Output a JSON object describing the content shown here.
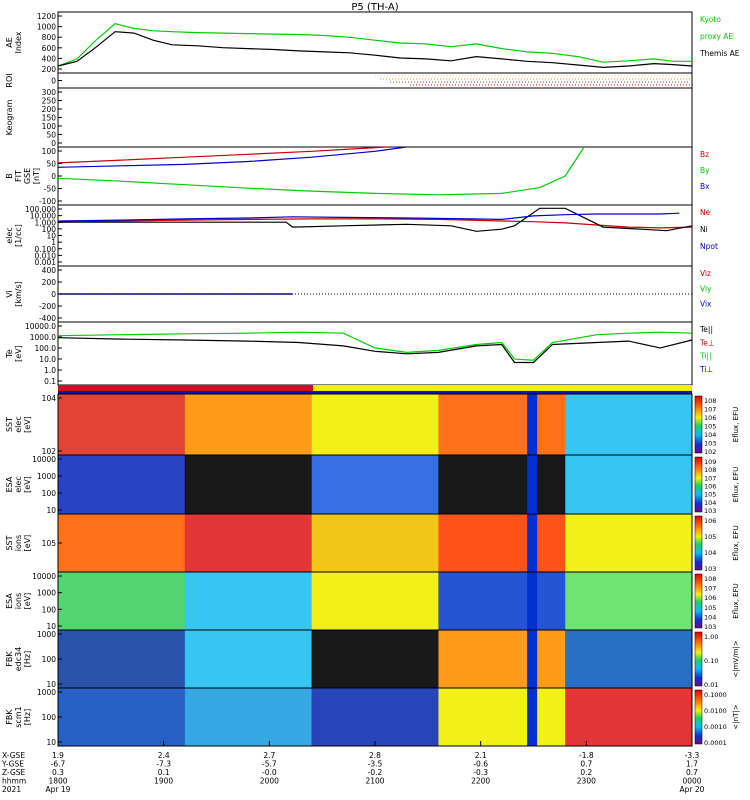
{
  "title": "P5 (TH-A)",
  "chart_data": [
    {
      "type": "line",
      "panel": "ae",
      "ylabel": "AE Index",
      "yticks": [
        "1200",
        "1000",
        "800",
        "600",
        "400",
        "200"
      ],
      "ylim": [
        0,
        1300
      ],
      "series": [
        {
          "name": "Kyoto proxy AE",
          "color": "#00cc00",
          "x": [
            0,
            0.03,
            0.06,
            0.09,
            0.12,
            0.15,
            0.18,
            0.22,
            0.26,
            0.3,
            0.34,
            0.38,
            0.42,
            0.46,
            0.5,
            0.54,
            0.58,
            0.62,
            0.66,
            0.7,
            0.74,
            0.78,
            0.82,
            0.86,
            0.9,
            0.94,
            0.97,
            1.0
          ],
          "values": [
            150,
            300,
            700,
            1050,
            950,
            900,
            880,
            860,
            850,
            840,
            830,
            820,
            800,
            760,
            700,
            640,
            620,
            560,
            620,
            520,
            450,
            420,
            350,
            230,
            260,
            300,
            250,
            250
          ]
        },
        {
          "name": "Themis AE",
          "color": "#000000",
          "x": [
            0,
            0.03,
            0.06,
            0.09,
            0.12,
            0.15,
            0.18,
            0.22,
            0.26,
            0.3,
            0.34,
            0.38,
            0.42,
            0.46,
            0.5,
            0.54,
            0.58,
            0.62,
            0.66,
            0.7,
            0.74,
            0.78,
            0.82,
            0.86,
            0.9,
            0.94,
            0.97,
            1.0
          ],
          "values": [
            150,
            250,
            550,
            880,
            850,
            700,
            600,
            580,
            540,
            520,
            500,
            470,
            450,
            430,
            380,
            320,
            300,
            260,
            350,
            300,
            250,
            220,
            170,
            120,
            150,
            200,
            180,
            150
          ]
        }
      ]
    },
    {
      "type": "line",
      "panel": "roi",
      "ylabel": "ROI",
      "yticks": [
        "0"
      ]
    },
    {
      "type": "line",
      "panel": "keogram",
      "ylabel": "Keogram",
      "yticks": [
        "300",
        "250",
        "200",
        "150",
        "100",
        "50",
        "0"
      ],
      "ylim": [
        0,
        300
      ]
    },
    {
      "type": "line",
      "panel": "bfit",
      "ylabel": "B FIT GSE [nT]",
      "yticks": [
        "100",
        "50",
        "0",
        "-50",
        "-100"
      ],
      "ylim": [
        -100,
        100
      ],
      "series": [
        {
          "name": "Bz",
          "color": "#cc0000",
          "x": [
            0,
            0.1,
            0.2,
            0.3,
            0.4,
            0.48,
            0.52
          ],
          "values": [
            45,
            55,
            65,
            75,
            85,
            95,
            100
          ]
        },
        {
          "name": "By",
          "color": "#00cc00",
          "x": [
            0,
            0.1,
            0.2,
            0.3,
            0.4,
            0.5,
            0.6,
            0.7,
            0.76,
            0.8,
            0.83
          ],
          "values": [
            -8,
            -18,
            -30,
            -42,
            -52,
            -60,
            -65,
            -60,
            -40,
            0,
            100
          ]
        },
        {
          "name": "Bx",
          "color": "#0000cc",
          "x": [
            0,
            0.1,
            0.2,
            0.3,
            0.4,
            0.5,
            0.55
          ],
          "values": [
            30,
            35,
            40,
            50,
            65,
            85,
            100
          ]
        }
      ]
    },
    {
      "type": "line",
      "panel": "dens",
      "ylabel": "elec [1/cc]",
      "yticks": [
        "100,000",
        "10,000",
        "1,000",
        "100",
        "10",
        "1",
        "0.100",
        "0.010",
        "0.001"
      ],
      "ylim": [
        0.0005,
        300000
      ],
      "scale": "log",
      "series": [
        {
          "name": "Ne",
          "color": "#cc0000",
          "x": [
            0,
            0.1,
            0.2,
            0.3,
            0.4,
            0.5,
            0.6,
            0.65,
            0.7,
            0.75,
            0.8,
            0.85,
            0.9,
            0.95,
            1.0
          ],
          "values": [
            1000,
            1500,
            2000,
            2500,
            3000,
            3000,
            2500,
            2000,
            1500,
            1200,
            800,
            400,
            200,
            150,
            200
          ]
        },
        {
          "name": "Ni",
          "color": "#000000",
          "x": [
            0,
            0.12,
            0.24,
            0.36,
            0.37,
            0.45,
            0.55,
            0.62,
            0.66,
            0.7,
            0.72,
            0.76,
            0.8,
            0.86,
            0.92,
            0.96,
            1.0
          ],
          "values": [
            1000,
            1000,
            1000,
            1000,
            200,
            300,
            500,
            300,
            50,
            100,
            300,
            100000,
            100000,
            200,
            100,
            60,
            300
          ]
        },
        {
          "name": "Npot",
          "color": "#0000cc",
          "x": [
            0,
            0.1,
            0.2,
            0.3,
            0.37,
            0.45,
            0.55,
            0.65,
            0.7,
            0.75,
            0.8,
            0.85,
            0.9,
            0.95,
            0.98
          ],
          "values": [
            1500,
            2000,
            3000,
            4000,
            6000,
            5000,
            4000,
            3000,
            2500,
            8000,
            12000,
            15000,
            15000,
            15000,
            20000
          ]
        }
      ]
    },
    {
      "type": "line",
      "panel": "vi",
      "ylabel": "Vi [km/s]",
      "yticks": [
        "400",
        "200",
        "0",
        "-200",
        "-400"
      ],
      "ylim": [
        -500,
        500
      ],
      "series": [
        {
          "name": "Viz",
          "color": "#cc0000",
          "x": [
            0,
            0.37
          ],
          "values": [
            0,
            0
          ]
        },
        {
          "name": "Viy",
          "color": "#00cc00",
          "x": [
            0,
            0.37
          ],
          "values": [
            0,
            0
          ]
        },
        {
          "name": "Vix",
          "color": "#0000cc",
          "x": [
            0,
            0.37
          ],
          "values": [
            0,
            0
          ]
        }
      ]
    },
    {
      "type": "line",
      "panel": "temp",
      "ylabel": "Te [eV]",
      "yticks": [
        "10000.0",
        "1000.0",
        "100.0",
        "10.0",
        "1.0",
        "0.1"
      ],
      "ylim": [
        0.05,
        20000
      ],
      "scale": "log",
      "series": [
        {
          "name": "Te||",
          "color": "#000000",
          "x": [
            0,
            0.1,
            0.2,
            0.3,
            0.38,
            0.45,
            0.5,
            0.55,
            0.6,
            0.66,
            0.7,
            0.72,
            0.75,
            0.78,
            0.85,
            0.9,
            0.95,
            1.0
          ],
          "values": [
            800,
            600,
            500,
            400,
            300,
            150,
            50,
            30,
            40,
            150,
            200,
            5,
            5,
            200,
            300,
            400,
            100,
            500
          ]
        },
        {
          "name": "Te⊥",
          "color": "#cc0000",
          "x": [],
          "values": []
        },
        {
          "name": "Ti||",
          "color": "#00cc00",
          "x": [
            0,
            0.1,
            0.2,
            0.3,
            0.38,
            0.45,
            0.5,
            0.55,
            0.6,
            0.66,
            0.7,
            0.72,
            0.75,
            0.78,
            0.85,
            0.9,
            0.95,
            1.0
          ],
          "values": [
            1200,
            1500,
            1800,
            2000,
            2500,
            2000,
            100,
            40,
            60,
            200,
            300,
            10,
            8,
            300,
            1500,
            2000,
            2500,
            2000
          ]
        },
        {
          "name": "Ti⊥",
          "color": "#0000cc",
          "x": [],
          "values": []
        }
      ]
    }
  ],
  "spectrograms": [
    {
      "id": "sst-e",
      "ylabel": "SST elec [eV]",
      "yticks": [
        "10^4",
        "10^2"
      ],
      "cb_label": "Eflux, EFU",
      "cb_ticks": [
        "10^8",
        "10^7",
        "10^6",
        "10^5",
        "10^4",
        "10^3",
        "10^2"
      ]
    },
    {
      "id": "esa-e",
      "ylabel": "ESA elec [eV]",
      "yticks": [
        "10000",
        "1000",
        "100",
        "10"
      ],
      "cb_label": "Eflux, EFU",
      "cb_ticks": [
        "10^9",
        "10^8",
        "10^7",
        "10^6",
        "10^5",
        "10^4",
        "10^3"
      ]
    },
    {
      "id": "sst-i",
      "ylabel": "SST ions [eV]",
      "yticks": [
        "10^5"
      ],
      "cb_label": "Eflux, EFU",
      "cb_ticks": [
        "10^6",
        "10^5",
        "10^4",
        "10^3"
      ]
    },
    {
      "id": "esa-i",
      "ylabel": "ESA ions [eV]",
      "yticks": [
        "10000",
        "1000",
        "100",
        "10"
      ],
      "cb_label": "Eflux, EFU",
      "cb_ticks": [
        "10^8",
        "10^7",
        "10^6",
        "10^5",
        "10^4",
        "10^3"
      ]
    },
    {
      "id": "fbk-e",
      "ylabel": "FBK edc34 [Hz]",
      "yticks": [
        "1000",
        "100",
        "10"
      ],
      "cb_label": "<|mV/m|>",
      "cb_ticks": [
        "1.00",
        "0.10",
        "0.01"
      ]
    },
    {
      "id": "fbk-b",
      "ylabel": "FBK scm1 [Hz]",
      "yticks": [
        "1000",
        "100",
        "10"
      ],
      "cb_label": "<|nT|>",
      "cb_ticks": [
        "0.1000",
        "0.0100",
        "0.0010",
        "0.0001"
      ]
    }
  ],
  "legends": {
    "ae": [
      {
        "text": "Kyoto",
        "color": "#00cc00"
      },
      {
        "text": "proxy AE",
        "color": "#00cc00"
      },
      {
        "text": "Themis AE",
        "color": "#000000"
      }
    ],
    "bfit": [
      {
        "text": "Bz",
        "color": "#cc0000"
      },
      {
        "text": "By",
        "color": "#00cc00"
      },
      {
        "text": "Bx",
        "color": "#0000cc"
      }
    ],
    "dens": [
      {
        "text": "Ne",
        "color": "#cc0000"
      },
      {
        "text": "Ni",
        "color": "#000000"
      },
      {
        "text": "Npot",
        "color": "#0000cc"
      }
    ],
    "vi": [
      {
        "text": "Viz",
        "color": "#cc0000"
      },
      {
        "text": "Viy",
        "color": "#00cc00"
      },
      {
        "text": "Vix",
        "color": "#0000cc"
      }
    ],
    "temp": [
      {
        "text": "Te||",
        "color": "#000000"
      },
      {
        "text": "Te⊥",
        "color": "#cc0000"
      },
      {
        "text": "Ti||",
        "color": "#00cc00"
      },
      {
        "text": "Ti⊥",
        "color": "#0000cc"
      }
    ]
  },
  "footer": {
    "row_labels": [
      "X-GSE",
      "Y-GSE",
      "Z-GSE",
      "hhmm",
      "2021"
    ],
    "columns": [
      {
        "values": [
          "1.9",
          "-6.7",
          "0.3",
          "1800",
          "Apr 19"
        ]
      },
      {
        "values": [
          "2.4",
          "-7.3",
          "0.1",
          "1900",
          ""
        ]
      },
      {
        "values": [
          "2.7",
          "-5.7",
          "-0.0",
          "2000",
          ""
        ]
      },
      {
        "values": [
          "2.8",
          "-3.5",
          "-0.2",
          "2100",
          ""
        ]
      },
      {
        "values": [
          "2.1",
          "-0.6",
          "-0.3",
          "2200",
          ""
        ]
      },
      {
        "values": [
          "-1.8",
          "0.7",
          "0.2",
          "2300",
          ""
        ]
      },
      {
        "values": [
          "-3.3",
          "1.7",
          "0.7",
          "0000",
          "Apr 20"
        ]
      }
    ]
  }
}
